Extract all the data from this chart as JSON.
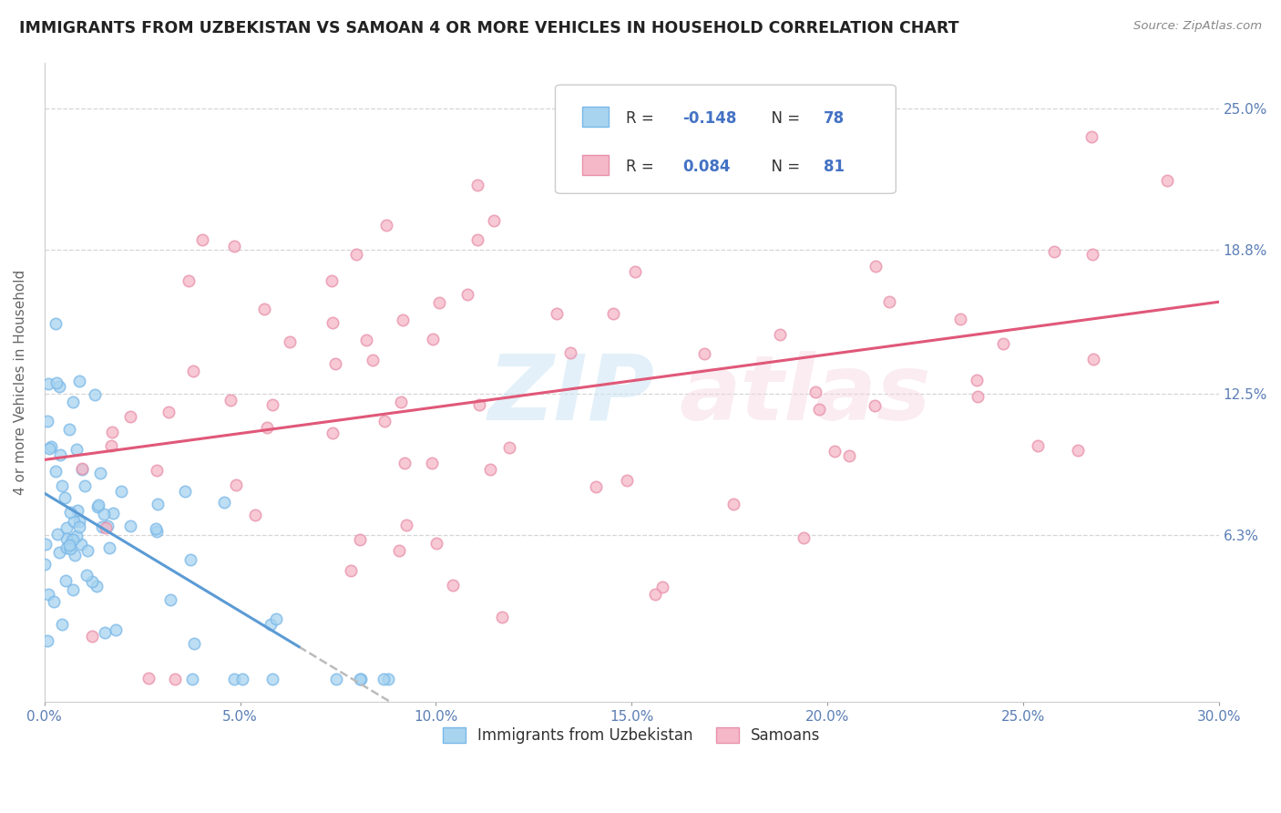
{
  "title": "IMMIGRANTS FROM UZBEKISTAN VS SAMOAN 4 OR MORE VEHICLES IN HOUSEHOLD CORRELATION CHART",
  "source": "Source: ZipAtlas.com",
  "ylabel": "4 or more Vehicles in Household",
  "xlim": [
    0.0,
    0.3
  ],
  "ylim": [
    -0.01,
    0.27
  ],
  "xtick_labels": [
    "0.0%",
    "5.0%",
    "10.0%",
    "15.0%",
    "20.0%",
    "25.0%",
    "30.0%"
  ],
  "xtick_vals": [
    0.0,
    0.05,
    0.1,
    0.15,
    0.2,
    0.25,
    0.3
  ],
  "ytick_labels": [
    "6.3%",
    "12.5%",
    "18.8%",
    "25.0%"
  ],
  "ytick_vals": [
    0.063,
    0.125,
    0.188,
    0.25
  ],
  "grid_color": "#cccccc",
  "background_color": "#ffffff",
  "watermark_zip": "ZIP",
  "watermark_atlas": "atlas",
  "series1_label": "Immigrants from Uzbekistan",
  "series1_color": "#a8d4f0",
  "series1_edge": "#7ab8e8",
  "series1_line_color": "#5b9bd5",
  "series2_label": "Samoans",
  "series2_color": "#f5b8c8",
  "series2_edge": "#e890aa",
  "series2_line_color": "#e05878",
  "series1_R": -0.148,
  "series1_N": 78,
  "series2_R": 0.084,
  "series2_N": 81,
  "dash_color": "#bbbbbb",
  "text_blue": "#4472c4",
  "text_dark": "#333333",
  "tick_color": "#5b7eb5"
}
